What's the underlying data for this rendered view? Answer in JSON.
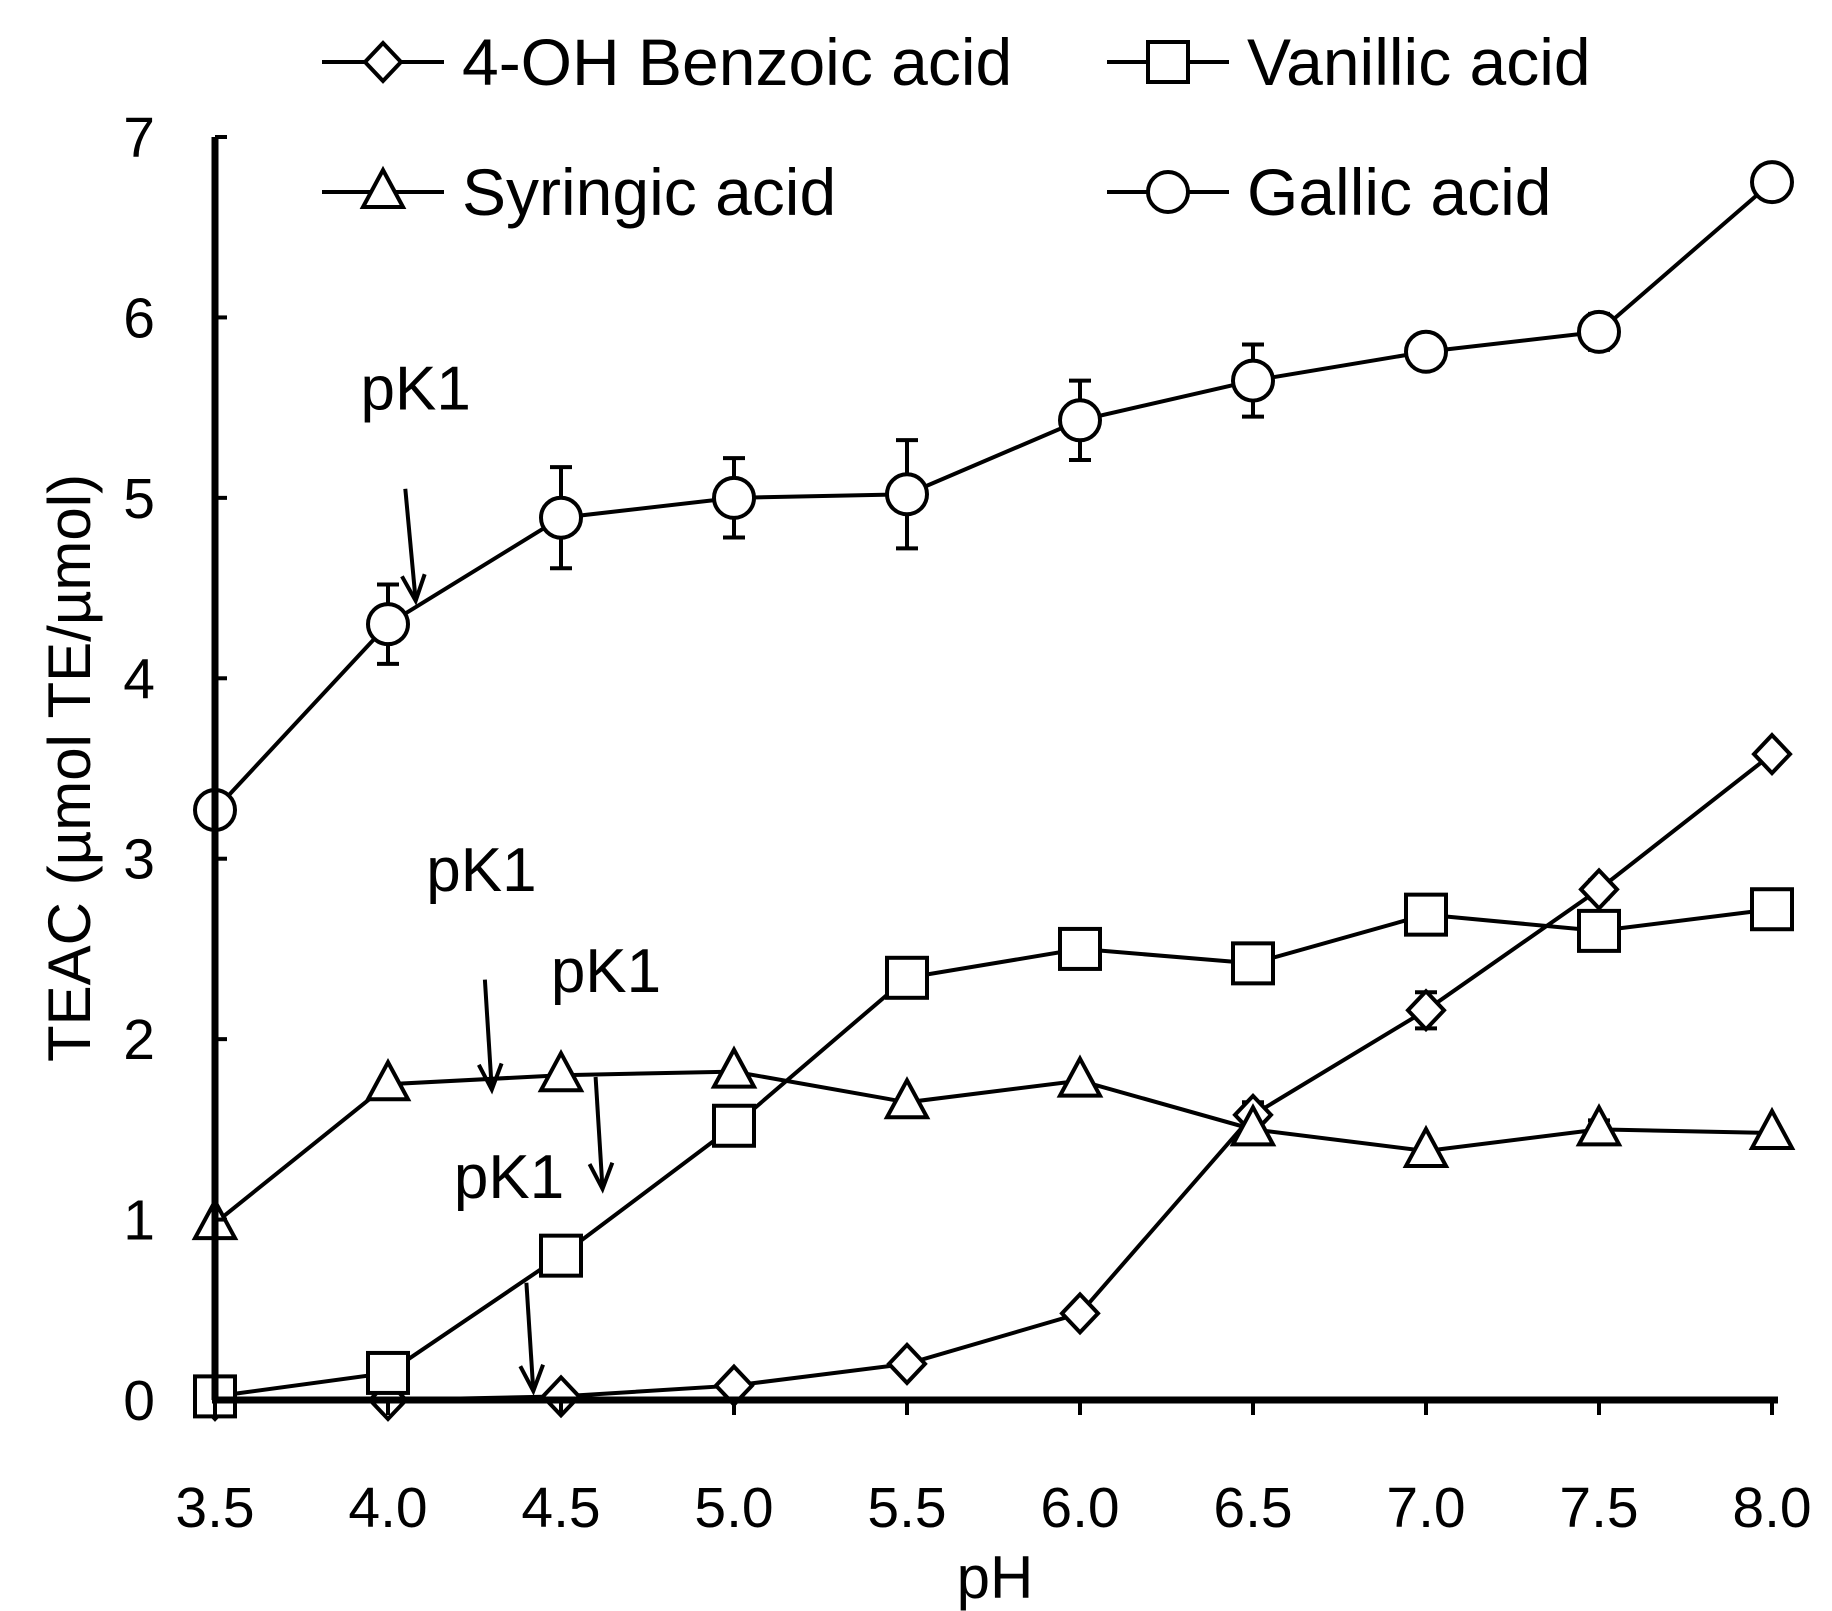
{
  "chart_data": {
    "type": "line",
    "x": [
      3.5,
      4.0,
      4.5,
      5.0,
      5.5,
      6.0,
      6.5,
      7.0,
      7.5,
      8.0
    ],
    "x_tick_labels": [
      "3.5",
      "4.0",
      "4.5",
      "5.0",
      "5.5",
      "6.0",
      "6.5",
      "7.0",
      "7.5",
      "8.0"
    ],
    "y_ticks": [
      "0",
      "1",
      "2",
      "3",
      "4",
      "5",
      "6",
      "7"
    ],
    "xlabel": "pH",
    "ylabel": "TEAC (µmol TE/µmol)",
    "xlim": [
      3.5,
      8.0
    ],
    "ylim": [
      0,
      7
    ],
    "grid": false,
    "legend_position": "top",
    "series": [
      {
        "name": "4-OH Benzoic acid",
        "marker": "diamond",
        "values": [
          0.0,
          0.0,
          0.02,
          0.08,
          0.2,
          0.48,
          1.58,
          2.16,
          2.83,
          3.58
        ],
        "error": [
          0,
          0,
          0,
          0,
          0,
          0,
          0.07,
          0.1,
          0.05,
          0.04
        ]
      },
      {
        "name": "Vanillic acid",
        "marker": "square",
        "values": [
          0.02,
          0.15,
          0.8,
          1.52,
          2.34,
          2.5,
          2.42,
          2.69,
          2.6,
          2.72
        ],
        "error": [
          0,
          0,
          0,
          0,
          0,
          0,
          0,
          0,
          0,
          0
        ]
      },
      {
        "name": "Syringic acid",
        "marker": "triangle",
        "values": [
          0.98,
          1.75,
          1.8,
          1.82,
          1.65,
          1.77,
          1.5,
          1.38,
          1.5,
          1.48
        ],
        "error": [
          0,
          0,
          0,
          0,
          0,
          0,
          0,
          0,
          0.05,
          0
        ]
      },
      {
        "name": "Gallic acid",
        "marker": "circle",
        "values": [
          3.27,
          4.3,
          4.89,
          5.0,
          5.02,
          5.43,
          5.65,
          5.81,
          5.92,
          6.75
        ],
        "error": [
          0.05,
          0.22,
          0.28,
          0.22,
          0.3,
          0.22,
          0.2,
          0,
          0.1,
          0.05
        ]
      }
    ],
    "annotations": [
      {
        "text": "pK1",
        "label_x": 4.08,
        "label_y": 5.49,
        "arrow_from": [
          4.05,
          5.05
        ],
        "arrow_to": [
          4.08,
          4.43
        ]
      },
      {
        "text": "pK1",
        "label_x": 4.27,
        "label_y": 2.82,
        "arrow_from": [
          4.28,
          2.33
        ],
        "arrow_to": [
          4.3,
          1.72
        ]
      },
      {
        "text": "pK1",
        "label_x": 4.63,
        "label_y": 2.26,
        "arrow_from": [
          4.6,
          1.79
        ],
        "arrow_to": [
          4.62,
          1.17
        ]
      },
      {
        "text": "pK1",
        "label_x": 4.35,
        "label_y": 1.12,
        "arrow_from": [
          4.4,
          0.65
        ],
        "arrow_to": [
          4.42,
          0.05
        ]
      }
    ]
  }
}
